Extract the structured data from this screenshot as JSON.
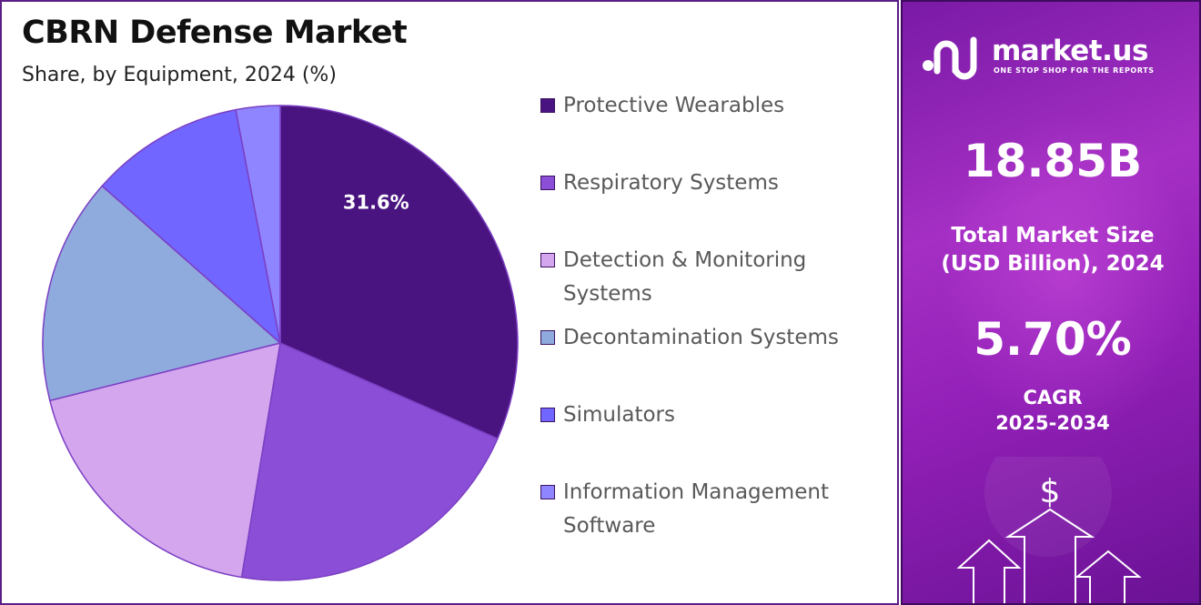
{
  "chart_data": {
    "type": "pie",
    "title": "CBRN Defense Market",
    "subtitle": "Share, by Equipment, 2024 (%)",
    "slices": [
      {
        "name": "Protective Wearables",
        "value": 31.6,
        "color": "#4a1480",
        "label": "31.6%"
      },
      {
        "name": "Respiratory Systems",
        "value": 21.0,
        "color": "#8a4fd6",
        "label": ""
      },
      {
        "name": "Detection & Monitoring Systems",
        "value": 18.5,
        "color": "#d4a6ee",
        "label": ""
      },
      {
        "name": "Decontamination Systems",
        "value": 15.4,
        "color": "#8faadc",
        "label": ""
      },
      {
        "name": "Simulators",
        "value": 10.5,
        "color": "#7166ff",
        "label": ""
      },
      {
        "name": "Information Management Software",
        "value": 3.0,
        "color": "#8f86ff",
        "label": ""
      }
    ],
    "legend_position": "right"
  },
  "legend": [
    {
      "lines": [
        "Protective Wearables"
      ],
      "color": "#4a1480"
    },
    {
      "lines": [
        "Respiratory Systems"
      ],
      "color": "#8a4fd6"
    },
    {
      "lines": [
        "Detection & Monitoring",
        "Systems"
      ],
      "color": "#d4a6ee"
    },
    {
      "lines": [
        "Decontamination Systems"
      ],
      "color": "#8faadc"
    },
    {
      "lines": [
        "Simulators"
      ],
      "color": "#7166ff"
    },
    {
      "lines": [
        "Information Management",
        "Software"
      ],
      "color": "#8f86ff"
    }
  ],
  "sidebar": {
    "brand_name": "market.us",
    "brand_tagline": "ONE STOP SHOP FOR THE REPORTS",
    "market_size_value": "18.85B",
    "market_size_caption_1": "Total Market Size",
    "market_size_caption_2": "(USD Billion), 2024",
    "cagr_value": "5.70%",
    "cagr_caption_1": "CAGR",
    "cagr_caption_2": "2025-2034",
    "dollar_symbol": "$"
  }
}
